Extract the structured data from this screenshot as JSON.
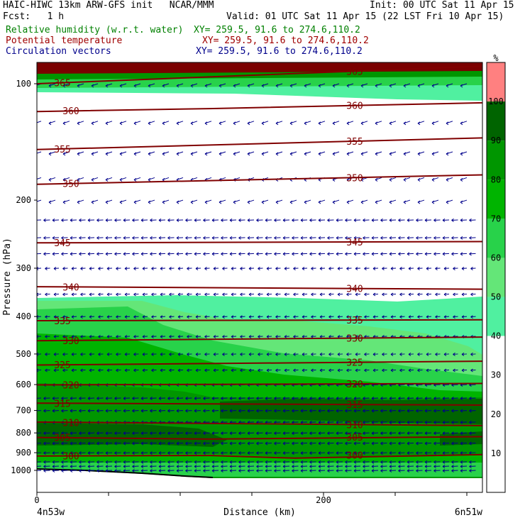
{
  "header": {
    "title_left": "HAIC-HIWC 13km ARW-GFS init   NCAR/MMM",
    "init": "Init: 00 UTC Sat 11 Apr 15",
    "fcst": "Fcst:   1 h",
    "valid": "Valid: 01 UTC Sat 11 Apr 15 (22 LST Fri 10 Apr 15)",
    "field_rh": "Relative humidity (w.r.t. water)",
    "field_theta": "Potential temperature",
    "field_vec": "Circulation vectors",
    "xy_rh": "XY= 259.5, 91.6 to 274.6,110.2",
    "xy_theta": "XY= 259.5, 91.6 to 274.6,110.2",
    "xy_vec": "XY= 259.5, 91.6 to 274.6,110.2"
  },
  "axes": {
    "ylabel": "Pressure (hPa)",
    "xlabel": "Distance (km)",
    "x_left_end": "4n53w",
    "x_right_end": "6n51w",
    "y_ticks": [
      "100",
      "200",
      "300",
      "400",
      "500",
      "600",
      "700",
      "800",
      "900",
      "1000"
    ],
    "x_ticks": [
      "0",
      "200"
    ]
  },
  "colorbar": {
    "unit": "%",
    "labels": [
      "100",
      "90",
      "80",
      "70",
      "60",
      "50",
      "40",
      "30",
      "20",
      "10"
    ],
    "colors": [
      "#ff8080",
      "#006400",
      "#009600",
      "#00b400",
      "#28d24a",
      "#64e678",
      "#50f0a0",
      "#ffffff",
      "#ffffff",
      "#ffffff",
      "#ffffff"
    ]
  },
  "chart_data": {
    "type": "cross-section",
    "ylim_hpa": [
      1050,
      80
    ],
    "xlim_km": [
      0,
      313
    ],
    "y_log_scale": true,
    "theta_contours": [
      {
        "label": "365",
        "points": [
          [
            0,
            100
          ],
          [
            313,
            90
          ]
        ]
      },
      {
        "label": "360",
        "points": [
          [
            0,
            118
          ],
          [
            120,
            116
          ],
          [
            313,
            112
          ]
        ]
      },
      {
        "label": "355",
        "points": [
          [
            0,
            148
          ],
          [
            313,
            138
          ]
        ]
      },
      {
        "label": "350",
        "points": [
          [
            0,
            182
          ],
          [
            313,
            172
          ]
        ]
      },
      {
        "label": "345",
        "points": [
          [
            0,
            258
          ],
          [
            313,
            256
          ]
        ]
      },
      {
        "label": "340",
        "points": [
          [
            0,
            335
          ],
          [
            313,
            340
          ]
        ]
      },
      {
        "label": "335",
        "points": [
          [
            0,
            410
          ],
          [
            313,
            408
          ]
        ]
      },
      {
        "label": "330",
        "points": [
          [
            0,
            462
          ],
          [
            313,
            452
          ]
        ]
      },
      {
        "label": "325",
        "points": [
          [
            0,
            534
          ],
          [
            313,
            522
          ]
        ]
      },
      {
        "label": "320",
        "points": [
          [
            0,
            601
          ],
          [
            313,
            596
          ]
        ]
      },
      {
        "label": "315",
        "points": [
          [
            0,
            670
          ],
          [
            313,
            678
          ]
        ]
      },
      {
        "label": "310",
        "points": [
          [
            0,
            750
          ],
          [
            313,
            766
          ]
        ]
      },
      {
        "label": "305",
        "points": [
          [
            0,
            822
          ],
          [
            120,
            830
          ],
          [
            313,
            818
          ]
        ]
      },
      {
        "label": "300",
        "points": [
          [
            0,
            918
          ],
          [
            120,
            915
          ],
          [
            180,
            930
          ],
          [
            313,
            910
          ]
        ]
      }
    ],
    "rh_levels": [
      10,
      20,
      30,
      40,
      50,
      60,
      70,
      80,
      90,
      100
    ],
    "terrain_surface_hpa": 1000,
    "wind_vectors": "easterly flow at all levels"
  }
}
